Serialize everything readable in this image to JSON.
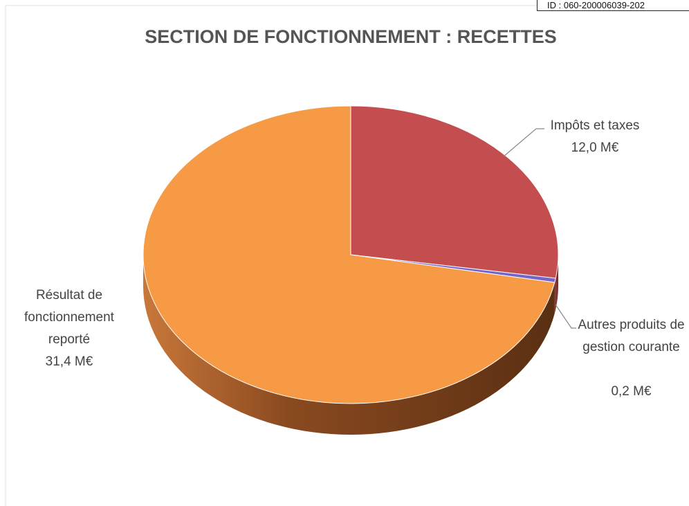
{
  "chart_data": {
    "type": "pie",
    "title": "SECTION DE FONCTIONNEMENT : RECETTES",
    "stamp": "ID : 060-200006039-202",
    "categories": [
      "Impôts et taxes",
      "Autres produits de gestion courante",
      "Résultat de fonctionnement reporté"
    ],
    "values": [
      12.0,
      0.2,
      31.4
    ],
    "value_labels": [
      "12,0 M€",
      "0,2 M€",
      "31,4 M€"
    ],
    "colors": [
      "#c44d4f",
      "#7467c9",
      "#f79a46"
    ]
  }
}
